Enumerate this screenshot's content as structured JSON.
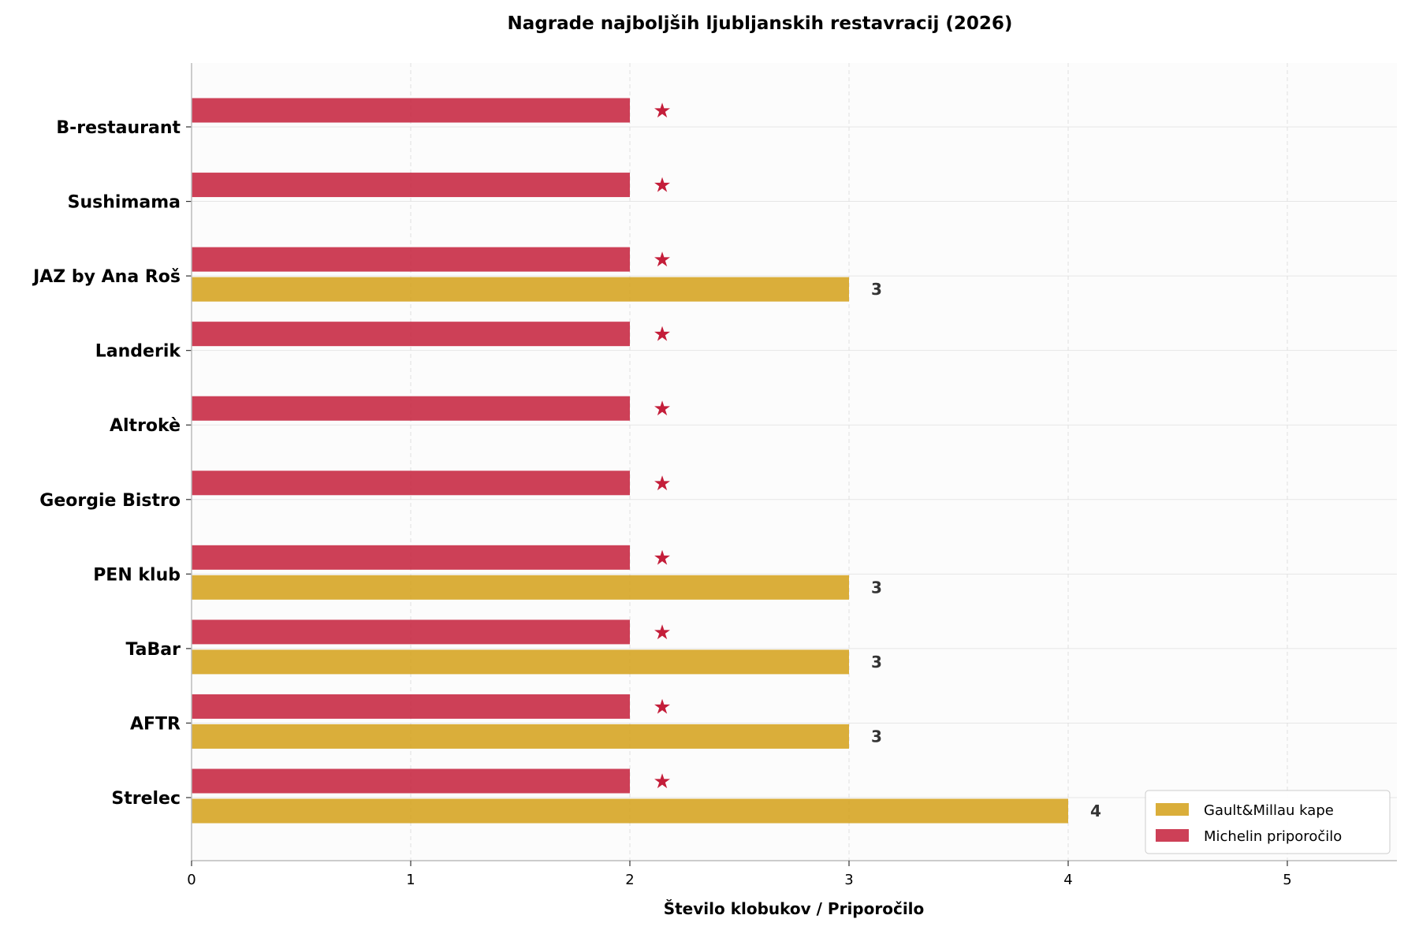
{
  "chart_data": {
    "type": "bar",
    "orientation": "horizontal",
    "title": "Nagrade najboljših ljubljanskih restavracij (2026)",
    "xlabel": "Število klobukov / Priporočilo",
    "ylabel": "",
    "xlim": [
      0,
      5.5
    ],
    "xticks": [
      0,
      1,
      2,
      3,
      4,
      5
    ],
    "grid": true,
    "legend_position": "bottom-right",
    "categories": [
      "Strelec",
      "AFTR",
      "TaBar",
      "PEN klub",
      "Georgie Bistro",
      "Altrokè",
      "Landerik",
      "JAZ by Ana Roš",
      "Sushimama",
      "B-restaurant"
    ],
    "series": [
      {
        "name": "Gault&Millau kape",
        "color": "#d4a017",
        "values": [
          4,
          3,
          3,
          3,
          null,
          null,
          null,
          3,
          null,
          null
        ],
        "data_labels": [
          "4",
          "3",
          "3",
          "3",
          "",
          "",
          "",
          "3",
          "",
          ""
        ]
      },
      {
        "name": "Michelin priporočilo",
        "color": "#c41e3a",
        "values": [
          2,
          2,
          2,
          2,
          2,
          2,
          2,
          2,
          2,
          2
        ],
        "marker": "★"
      }
    ]
  }
}
